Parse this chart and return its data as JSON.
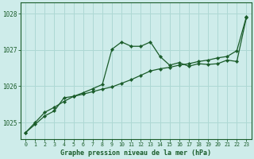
{
  "title": "Graphe pression niveau de la mer (hPa)",
  "bg_color": "#ceecea",
  "grid_color": "#aed8d4",
  "line_color": "#1a5c2a",
  "xlim_min": -0.5,
  "xlim_max": 23.5,
  "ylim_min": 1024.55,
  "ylim_max": 1028.3,
  "yticks": [
    1025,
    1026,
    1027,
    1028
  ],
  "xticks": [
    0,
    1,
    2,
    3,
    4,
    5,
    6,
    7,
    8,
    9,
    10,
    11,
    12,
    13,
    14,
    15,
    16,
    17,
    18,
    19,
    20,
    21,
    22,
    23
  ],
  "series1_x": [
    0,
    1,
    2,
    3,
    4,
    5,
    6,
    7,
    8,
    9,
    10,
    11,
    12,
    13,
    14,
    15,
    16,
    17,
    18,
    19,
    20,
    21,
    22,
    23
  ],
  "series1_y": [
    1024.72,
    1025.0,
    1025.28,
    1025.42,
    1025.58,
    1025.72,
    1025.82,
    1025.93,
    1026.05,
    1027.02,
    1027.22,
    1027.1,
    1027.1,
    1027.22,
    1026.82,
    1026.58,
    1026.65,
    1026.55,
    1026.62,
    1026.6,
    1026.62,
    1026.72,
    1026.68,
    1027.9
  ],
  "series2_x": [
    0,
    1,
    2,
    3,
    4,
    5,
    6,
    7,
    8,
    9,
    10,
    11,
    12,
    13,
    14,
    15,
    16,
    17,
    18,
    19,
    20,
    21,
    22,
    23
  ],
  "series2_y": [
    1024.72,
    1024.95,
    1025.18,
    1025.32,
    1025.68,
    1025.72,
    1025.78,
    1025.85,
    1025.92,
    1025.98,
    1026.08,
    1026.18,
    1026.3,
    1026.42,
    1026.48,
    1026.52,
    1026.58,
    1026.62,
    1026.68,
    1026.72,
    1026.78,
    1026.82,
    1026.98,
    1027.92
  ]
}
